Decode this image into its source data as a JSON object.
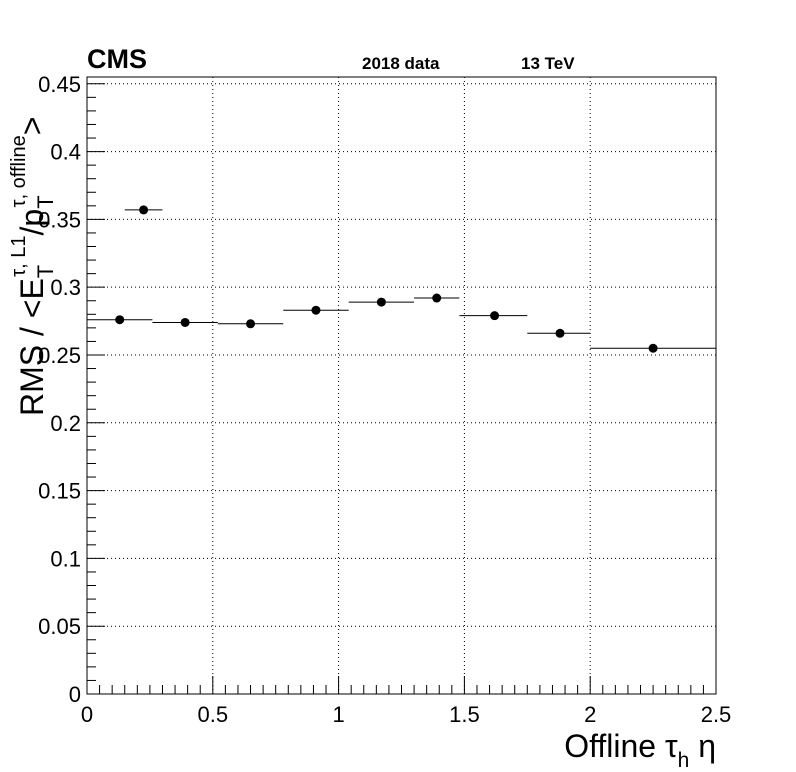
{
  "header": {
    "experiment": "CMS",
    "dataset": "2018 data",
    "energy": "13 TeV"
  },
  "axes": {
    "x_label_prefix": "Offline ",
    "x_label_tau": "τ",
    "x_label_sub": "h",
    "x_label_suffix": " η",
    "y_label_main": "RMS / <E",
    "y_label_sub1": "T",
    "y_label_sup1": "τ, L1",
    "y_label_mid": "/p",
    "y_label_sub2": "T",
    "y_label_sup2": "τ, offline",
    "y_label_end": ">"
  },
  "chart_data": {
    "type": "scatter",
    "title": "",
    "xlabel": "Offline τh η",
    "ylabel": "RMS / <E_T^{τ, L1}/p_T^{τ, offline}>",
    "xlim": [
      0,
      2.5
    ],
    "ylim": [
      0,
      0.455
    ],
    "x_ticks": [
      0,
      0.5,
      1,
      1.5,
      2,
      2.5
    ],
    "x_tick_labels": [
      "0",
      "0.5",
      "1",
      "1.5",
      "2",
      "2.5"
    ],
    "y_ticks": [
      0,
      0.05,
      0.1,
      0.15,
      0.2,
      0.25,
      0.3,
      0.35,
      0.4,
      0.45
    ],
    "y_tick_labels": [
      "0",
      "0.05",
      "0.1",
      "0.15",
      "0.2",
      "0.25",
      "0.3",
      "0.35",
      "0.4",
      "0.45"
    ],
    "grid": true,
    "series": [
      {
        "points": [
          {
            "x": 0.13,
            "xlo": 0.0,
            "xhi": 0.26,
            "y": 0.276
          },
          {
            "x": 0.39,
            "xlo": 0.26,
            "xhi": 0.52,
            "y": 0.274
          },
          {
            "x": 0.65,
            "xlo": 0.52,
            "xhi": 0.78,
            "y": 0.273
          },
          {
            "x": 0.91,
            "xlo": 0.78,
            "xhi": 1.04,
            "y": 0.283
          },
          {
            "x": 1.17,
            "xlo": 1.04,
            "xhi": 1.3,
            "y": 0.289
          },
          {
            "x": 1.39,
            "xlo": 1.3,
            "xhi": 1.48,
            "y": 0.292
          },
          {
            "x": 1.62,
            "xlo": 1.48,
            "xhi": 1.75,
            "y": 0.279
          },
          {
            "x": 1.88,
            "xlo": 1.75,
            "xhi": 2.0,
            "y": 0.266
          },
          {
            "x": 2.25,
            "xlo": 2.0,
            "xhi": 2.5,
            "y": 0.255
          }
        ]
      }
    ],
    "extra_points": [
      {
        "x": 0.225,
        "xlo": 0.15,
        "xhi": 0.3,
        "y": 0.357
      }
    ]
  }
}
